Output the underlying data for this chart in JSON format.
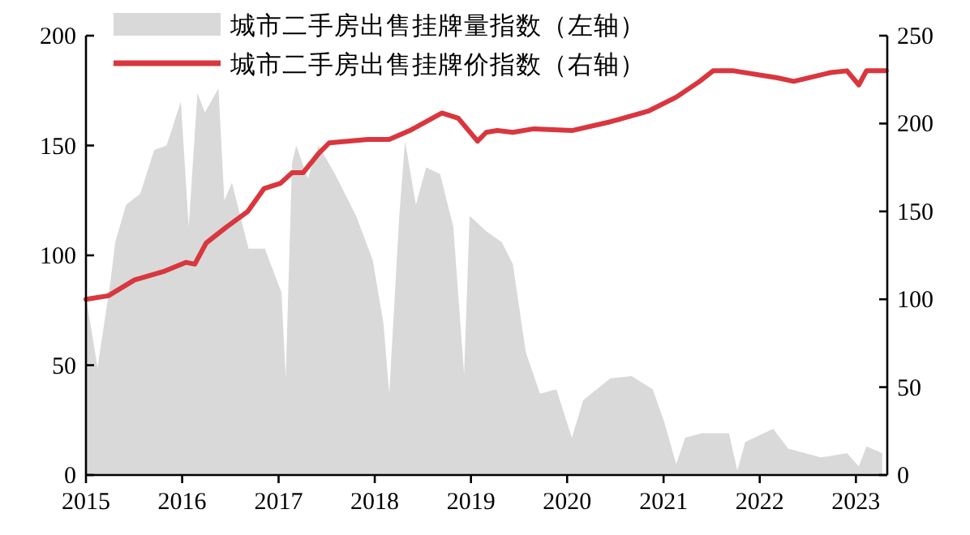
{
  "chart_data": {
    "type": "line",
    "xlim": [
      "2015-01-01",
      "2023-04-30"
    ],
    "xticks": [
      {
        "value": "2015-01-01",
        "label": "2015"
      },
      {
        "value": "2016-01-01",
        "label": "2016"
      },
      {
        "value": "2017-01-01",
        "label": "2017"
      },
      {
        "value": "2018-01-01",
        "label": "2018"
      },
      {
        "value": "2019-01-01",
        "label": "2019"
      },
      {
        "value": "2020-01-01",
        "label": "2020"
      },
      {
        "value": "2021-01-01",
        "label": "2021"
      },
      {
        "value": "2022-01-01",
        "label": "2022"
      },
      {
        "value": "2023-01-01",
        "label": "2023"
      }
    ],
    "ylim": [
      0,
      200
    ],
    "yticks": [
      0,
      50,
      100,
      150,
      200
    ],
    "y2lim": [
      0,
      250
    ],
    "y2ticks": [
      0,
      50,
      100,
      150,
      200,
      250
    ],
    "legend": "top left",
    "series": [
      {
        "name": "城市二手房出售挂牌量指数（左轴）",
        "type": "area",
        "color": "#d9d9d9",
        "x": [
          "2015-01-01",
          "2015-02-14",
          "2015-04-04",
          "2015-04-22",
          "2015-06-02",
          "2015-07-26",
          "2015-09-17",
          "2015-11-03",
          "2015-12-27",
          "2016-01-26",
          "2016-02-28",
          "2016-03-27",
          "2016-05-18",
          "2016-06-09",
          "2016-07-08",
          "2016-09-09",
          "2016-11-10",
          "2017-01-12",
          "2017-01-28",
          "2017-02-21",
          "2017-03-09",
          "2017-04-22",
          "2017-06-02",
          "2017-08-03",
          "2017-10-22",
          "2017-12-24",
          "2018-02-03",
          "2018-02-25",
          "2018-03-13",
          "2018-04-04",
          "2018-04-26",
          "2018-06-06",
          "2018-07-15",
          "2018-09-06",
          "2018-10-26",
          "2018-12-06",
          "2018-12-27",
          "2019-02-28",
          "2019-04-28",
          "2019-06-09",
          "2019-07-28",
          "2019-09-20",
          "2019-11-21",
          "2020-01-19",
          "2020-03-02",
          "2020-06-13",
          "2020-09-02",
          "2020-11-21",
          "2021-01-04",
          "2021-02-18",
          "2021-03-24",
          "2021-05-25",
          "2021-09-06",
          "2021-10-08",
          "2021-11-07",
          "2022-02-21",
          "2022-04-19",
          "2022-08-21",
          "2022-11-28",
          "2023-01-12",
          "2023-02-10",
          "2023-04-11"
        ],
        "values": [
          81,
          49,
          88,
          106,
          123,
          128,
          148,
          150,
          170,
          113,
          174,
          165,
          176,
          125,
          133,
          103,
          103,
          83,
          44,
          142,
          150,
          135,
          150,
          137,
          118,
          98,
          69,
          37,
          71,
          118,
          152,
          123,
          140,
          137,
          113,
          46,
          118,
          111,
          106,
          96,
          56,
          37,
          39,
          17,
          34,
          44,
          45,
          39,
          24,
          5,
          17,
          19,
          19,
          2,
          15,
          21,
          12,
          8,
          10,
          4,
          13,
          10
        ]
      },
      {
        "name": "城市二手房出售挂牌价指数（右轴）",
        "axis": "y2",
        "color": "#d9363e",
        "x": [
          "2015-01-01",
          "2015-03-27",
          "2015-07-04",
          "2015-10-26",
          "2016-01-15",
          "2016-02-18",
          "2016-04-01",
          "2016-06-16",
          "2016-09-06",
          "2016-11-07",
          "2017-01-08",
          "2017-02-21",
          "2017-04-04",
          "2017-06-02",
          "2017-07-12",
          "2017-12-06",
          "2018-02-25",
          "2018-05-14",
          "2018-09-13",
          "2018-11-14",
          "2019-01-26",
          "2019-02-28",
          "2019-04-11",
          "2019-06-09",
          "2019-08-28",
          "2020-01-19",
          "2020-06-13",
          "2020-11-03",
          "2021-02-18",
          "2021-05-18",
          "2021-07-08",
          "2021-09-24",
          "2022-03-09",
          "2022-05-10",
          "2022-09-27",
          "2022-11-28",
          "2023-01-12",
          "2023-02-10",
          "2023-04-26"
        ],
        "values": [
          100,
          102,
          111,
          116,
          121,
          120,
          132,
          141,
          150,
          163,
          166,
          172,
          172,
          183,
          189,
          191,
          191,
          196,
          206,
          203,
          190,
          195,
          196,
          195,
          197,
          196,
          201,
          207,
          215,
          224,
          230,
          230,
          226,
          224,
          229,
          230,
          222,
          230,
          230
        ]
      }
    ]
  }
}
